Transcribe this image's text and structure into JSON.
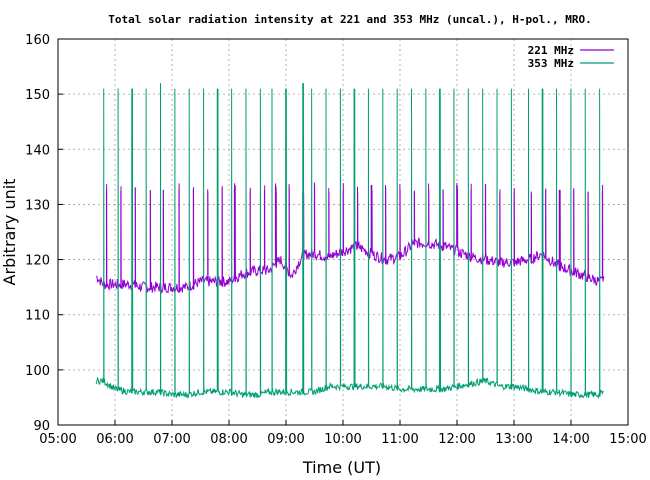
{
  "chart_data": {
    "type": "line",
    "title": "Total solar radiation intensity at 221 and 353 MHz (uncal.), H-pol., MRO.",
    "xlabel": "Time (UT)",
    "ylabel": "Arbitrary unit",
    "xlim_hours": [
      5,
      15
    ],
    "ylim": [
      90,
      160
    ],
    "x_ticks": [
      "05:00",
      "06:00",
      "07:00",
      "08:00",
      "09:00",
      "10:00",
      "11:00",
      "12:00",
      "13:00",
      "14:00",
      "15:00"
    ],
    "y_ticks": [
      "90",
      "100",
      "110",
      "120",
      "130",
      "140",
      "150",
      "160"
    ],
    "grid": true,
    "legend_position": "top-right",
    "series": [
      {
        "name": "221 MHz",
        "color": "#9400d3",
        "x_hours": [
          5.67,
          5.8,
          6.0,
          6.25,
          6.5,
          6.75,
          7.0,
          7.25,
          7.5,
          7.75,
          8.0,
          8.25,
          8.5,
          8.7,
          8.9,
          9.1,
          9.3,
          9.5,
          9.75,
          10.0,
          10.25,
          10.5,
          10.75,
          11.0,
          11.25,
          11.5,
          11.75,
          12.0,
          12.25,
          12.5,
          12.75,
          13.0,
          13.25,
          13.5,
          13.75,
          14.0,
          14.25,
          14.5,
          14.58
        ],
        "values": [
          117,
          115.5,
          115.5,
          115.5,
          115,
          115,
          115,
          115,
          116,
          116,
          116,
          117.5,
          118,
          118,
          120,
          117,
          121,
          121,
          120.5,
          121.5,
          122.5,
          121,
          120,
          120.5,
          123,
          123,
          122.5,
          121.5,
          120.5,
          120,
          119.5,
          119.5,
          120,
          121,
          119,
          118,
          117,
          116,
          116
        ],
        "calibration_spikes_hours": [
          5.85,
          6.1,
          6.35,
          6.62,
          6.85,
          7.12,
          7.37,
          7.63,
          7.88,
          8.1,
          8.37,
          8.62,
          8.82,
          9.05,
          9.3,
          9.5,
          9.75,
          10.0,
          10.25,
          10.5,
          10.75,
          11.0,
          11.25,
          11.5,
          11.75,
          12.0,
          12.25,
          12.5,
          12.75,
          13.0,
          13.3,
          13.55,
          13.8,
          14.05,
          14.3,
          14.55
        ],
        "spike_range": [
          124,
          134
        ]
      },
      {
        "name": "353 MHz",
        "color": "#009e73",
        "x_hours": [
          5.67,
          5.8,
          6.0,
          6.25,
          6.5,
          6.75,
          7.0,
          7.25,
          7.5,
          7.75,
          8.0,
          8.25,
          8.5,
          8.75,
          9.0,
          9.25,
          9.5,
          9.75,
          10.0,
          10.25,
          10.5,
          10.75,
          11.0,
          11.25,
          11.5,
          11.75,
          12.0,
          12.25,
          12.5,
          12.75,
          13.0,
          13.25,
          13.5,
          13.75,
          14.0,
          14.25,
          14.5,
          14.58
        ],
        "values": [
          98,
          98,
          96.5,
          96,
          96,
          96,
          95.5,
          95.5,
          96,
          96,
          96,
          95.5,
          95.5,
          96,
          96,
          96,
          96,
          97,
          97,
          97,
          97,
          97,
          96.5,
          96.5,
          96.5,
          96.5,
          97,
          97.5,
          98,
          97,
          97,
          96.5,
          96,
          96,
          95.5,
          95.5,
          95.5,
          96
        ],
        "calibration_spikes_hours": [
          5.8,
          6.05,
          6.3,
          6.55,
          6.8,
          7.05,
          7.3,
          7.55,
          7.8,
          8.05,
          8.3,
          8.55,
          8.75,
          9.0,
          9.3,
          9.45,
          9.7,
          9.95,
          10.2,
          10.45,
          10.7,
          10.95,
          11.2,
          11.45,
          11.7,
          11.95,
          12.2,
          12.45,
          12.7,
          12.95,
          13.25,
          13.5,
          13.75,
          14.0,
          14.25,
          14.5
        ],
        "spike_peaks": [
          151,
          151,
          151,
          151,
          152,
          151,
          151,
          151,
          151,
          151,
          151,
          151,
          151,
          151,
          152,
          151,
          151,
          151,
          151,
          151,
          151,
          151,
          151,
          151,
          151,
          151,
          151,
          151,
          151,
          151,
          151,
          151,
          151,
          151,
          151,
          151
        ]
      }
    ]
  }
}
